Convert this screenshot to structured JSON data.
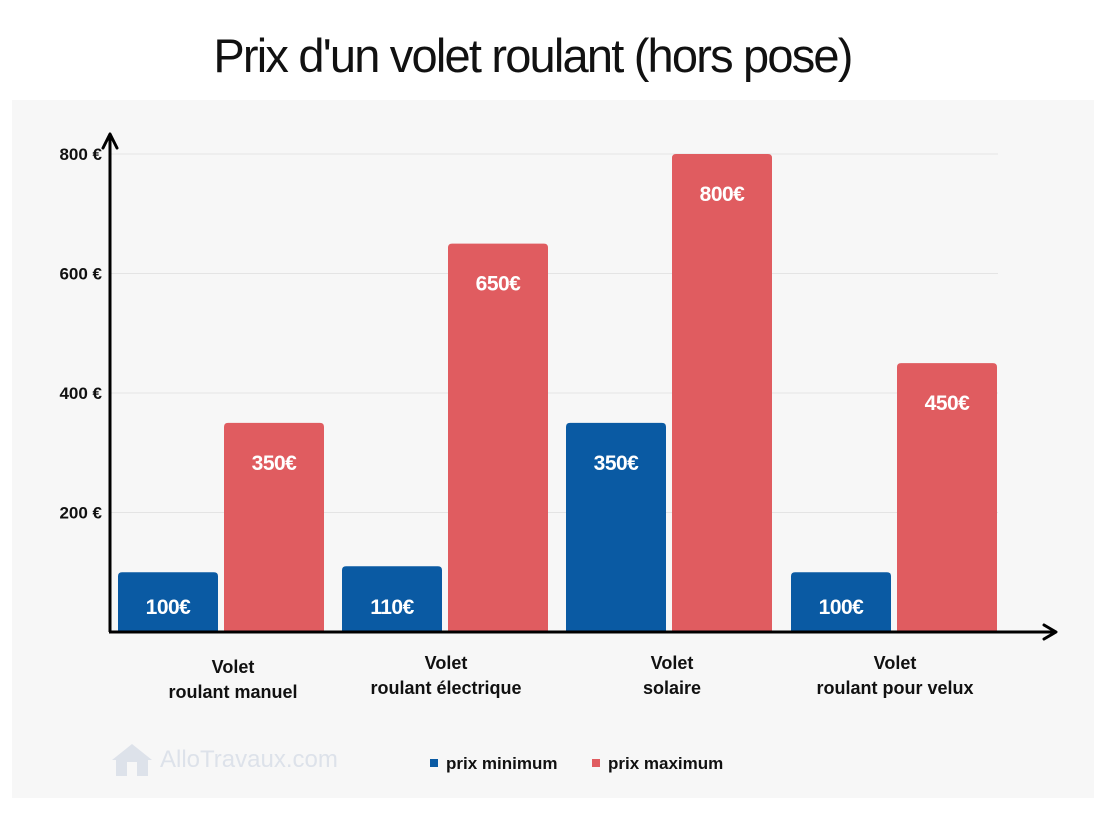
{
  "chart_data": {
    "type": "bar",
    "title": "Prix d'un volet roulant (hors pose)",
    "categories": [
      [
        "Volet",
        "roulant manuel"
      ],
      [
        "Volet",
        "roulant électrique"
      ],
      [
        "Volet",
        "solaire"
      ],
      [
        "Volet",
        "roulant pour velux"
      ]
    ],
    "series": [
      {
        "name": "prix minimum",
        "color": "#0a5aa3",
        "values": [
          100,
          110,
          350,
          100
        ],
        "labels": [
          "100€",
          "110€",
          "350€",
          "100€"
        ]
      },
      {
        "name": "prix maximum",
        "color": "#e05c60",
        "values": [
          350,
          650,
          800,
          450
        ],
        "labels": [
          "350€",
          "650€",
          "800€",
          "450€"
        ]
      }
    ],
    "yticks": [
      200,
      400,
      600,
      800
    ],
    "ytick_labels": [
      "200 €",
      "400 €",
      "600 €",
      "800 €"
    ],
    "ylim": [
      0,
      800
    ],
    "grid": true,
    "legend_position": "bottom"
  },
  "legend": {
    "min_label": "prix minimum",
    "max_label": "prix maximum"
  },
  "watermark": {
    "text": "AlloTravaux.com"
  }
}
